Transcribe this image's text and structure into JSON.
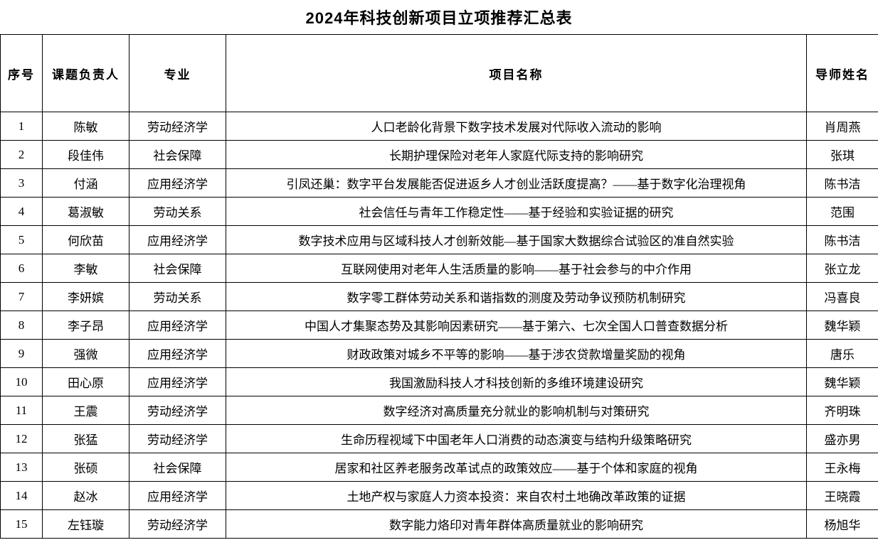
{
  "title": "2024年科技创新项目立项推荐汇总表",
  "table": {
    "headers": [
      "序号",
      "课题负责人",
      "专业",
      "项目名称",
      "导师姓名"
    ],
    "rows": [
      [
        "1",
        "陈敏",
        "劳动经济学",
        "人口老龄化背景下数字技术发展对代际收入流动的影响",
        "肖周燕"
      ],
      [
        "2",
        "段佳伟",
        "社会保障",
        "长期护理保险对老年人家庭代际支持的影响研究",
        "张琪"
      ],
      [
        "3",
        "付涵",
        "应用经济学",
        "引凤还巢：数字平台发展能否促进返乡人才创业活跃度提高？——基于数字化治理视角",
        "陈书洁"
      ],
      [
        "4",
        "葛淑敏",
        "劳动关系",
        "社会信任与青年工作稳定性——基于经验和实验证据的研究",
        "范围"
      ],
      [
        "5",
        "何欣苗",
        "应用经济学",
        "数字技术应用与区域科技人才创新效能—基于国家大数据综合试验区的准自然实验",
        "陈书洁"
      ],
      [
        "6",
        "李敏",
        "社会保障",
        "互联网使用对老年人生活质量的影响——基于社会参与的中介作用",
        "张立龙"
      ],
      [
        "7",
        "李妍嫔",
        "劳动关系",
        "数字零工群体劳动关系和谐指数的测度及劳动争议预防机制研究",
        "冯喜良"
      ],
      [
        "8",
        "李子昂",
        "应用经济学",
        "中国人才集聚态势及其影响因素研究——基于第六、七次全国人口普查数据分析",
        "魏华颖"
      ],
      [
        "9",
        "强微",
        "应用经济学",
        "财政政策对城乡不平等的影响——基于涉农贷款增量奖励的视角",
        "唐乐"
      ],
      [
        "10",
        "田心原",
        "应用经济学",
        "我国激励科技人才科技创新的多维环境建设研究",
        "魏华颖"
      ],
      [
        "11",
        "王震",
        "劳动经济学",
        "数字经济对高质量充分就业的影响机制与对策研究",
        "齐明珠"
      ],
      [
        "12",
        "张猛",
        "劳动经济学",
        "生命历程视域下中国老年人口消费的动态演变与结构升级策略研究",
        "盛亦男"
      ],
      [
        "13",
        "张硕",
        "社会保障",
        "居家和社区养老服务改革试点的政策效应——基于个体和家庭的视角",
        "王永梅"
      ],
      [
        "14",
        "赵冰",
        "应用经济学",
        "土地产权与家庭人力资本投资：来自农村土地确改革政策的证据",
        "王晓霞"
      ],
      [
        "15",
        "左钰璇",
        "劳动经济学",
        "数字能力烙印对青年群体高质量就业的影响研究",
        "杨旭华"
      ]
    ]
  }
}
